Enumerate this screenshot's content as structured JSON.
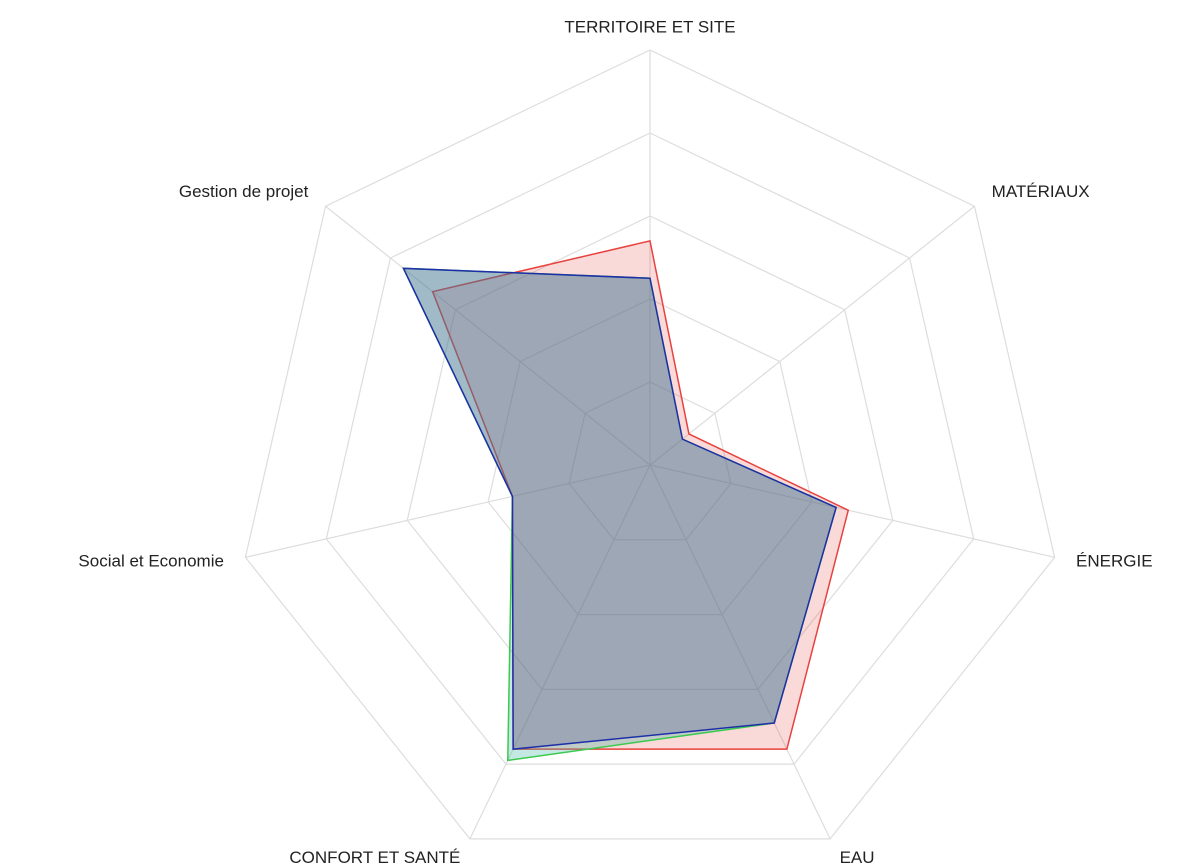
{
  "chart_data": {
    "type": "radar",
    "categories": [
      "TERRITOIRE ET SITE",
      "MATÉRIAUX",
      "ÉNERGIE",
      "EAU",
      "CONFORT ET SANTÉ",
      "Social et Economie",
      "Gestion de projet"
    ],
    "ylim": [
      0,
      5
    ],
    "yticks": [
      1,
      2,
      3,
      4,
      5
    ],
    "grid": true,
    "series": [
      {
        "color": "#e8423f",
        "fill": "rgba(232,66,63,0.2)",
        "values": [
          2.7,
          0.6,
          2.45,
          3.8,
          3.8,
          1.7,
          3.35
        ]
      },
      {
        "color": "#3cc94f",
        "fill": "rgba(60,180,160,0.3)",
        "values": [
          2.25,
          0.5,
          2.3,
          3.45,
          3.95,
          1.7,
          3.8
        ]
      },
      {
        "color": "#1f2fa8",
        "fill": "rgba(80,80,140,0.3)",
        "values": [
          2.25,
          0.5,
          2.3,
          3.45,
          3.8,
          1.7,
          3.8
        ]
      }
    ]
  }
}
